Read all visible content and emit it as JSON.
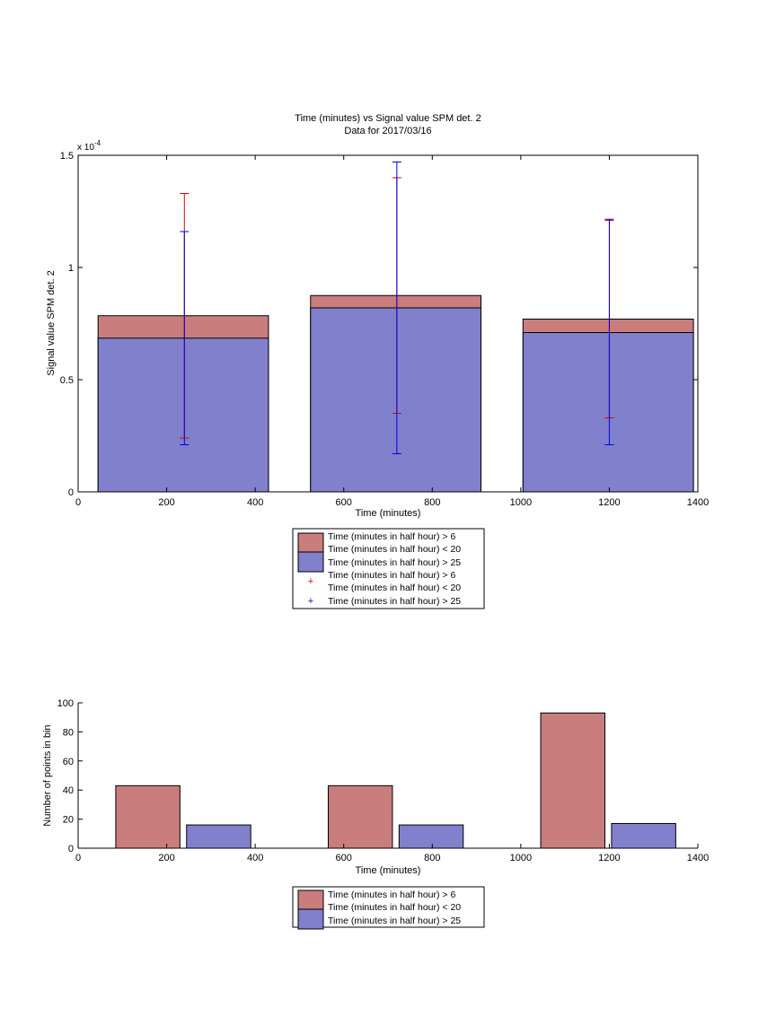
{
  "colors": {
    "red_fill": "#c97d7d",
    "blue_fill": "#8080cc",
    "red_err": "#e00000",
    "blue_err": "#0000e0",
    "axis": "#000000"
  },
  "chart_data": [
    {
      "type": "bar",
      "title": "Time (minutes) vs Signal value SPM det. 2",
      "subtitle": "Data for 2017/03/16",
      "xlabel": "Time (minutes)",
      "ylabel": "Signal value SPM det. 2",
      "y_multiplier": "x 10",
      "y_exponent": "-4",
      "xlim": [
        0,
        1400
      ],
      "ylim": [
        0,
        1.5
      ],
      "x_ticks": [
        0,
        200,
        400,
        600,
        800,
        1000,
        1200,
        1400
      ],
      "y_ticks": [
        0,
        0.5,
        1,
        1.5
      ],
      "bar_ranges": [
        [
          45,
          430
        ],
        [
          525,
          910
        ],
        [
          1005,
          1390
        ]
      ],
      "error_x": [
        240,
        720,
        1200
      ],
      "series": [
        {
          "name": "Time (minutes in half hour) > 6",
          "name_line2": "Time (minutes in half hour) < 20",
          "values": [
            0.785,
            0.875,
            0.77
          ],
          "err_low": [
            0.24,
            0.35,
            0.33
          ],
          "err_high": [
            1.33,
            1.4,
            1.21
          ]
        },
        {
          "name": "Time (minutes in half hour) > 25",
          "values": [
            0.685,
            0.82,
            0.71
          ],
          "err_low": [
            0.21,
            0.17,
            0.21
          ],
          "err_high": [
            1.16,
            1.47,
            1.215
          ]
        }
      ],
      "legend": [
        "Time (minutes in half hour) > 6",
        "Time (minutes in half hour) < 20",
        "Time (minutes in half hour) > 25",
        "Time (minutes in half hour) > 6",
        "Time (minutes in half hour) < 20",
        "Time (minutes in half hour) > 25"
      ],
      "legend_position": "below"
    },
    {
      "type": "bar",
      "xlabel": "Time (minutes)",
      "ylabel": "Number of points in bin",
      "xlim": [
        0,
        1400
      ],
      "ylim": [
        0,
        100
      ],
      "x_ticks": [
        0,
        200,
        400,
        600,
        800,
        1000,
        1200,
        1400
      ],
      "y_ticks": [
        0,
        20,
        40,
        60,
        80,
        100
      ],
      "series": [
        {
          "name": "Time (minutes in half hour) > 6",
          "name_line2": "Time (minutes in half hour) < 20",
          "bar_ranges": [
            [
              85,
              230
            ],
            [
              565,
              710
            ],
            [
              1045,
              1190
            ]
          ],
          "values": [
            43,
            43,
            93
          ]
        },
        {
          "name": "Time (minutes in half hour) > 25",
          "bar_ranges": [
            [
              245,
              390
            ],
            [
              725,
              870
            ],
            [
              1205,
              1350
            ]
          ],
          "values": [
            16,
            16,
            17
          ]
        }
      ],
      "legend": [
        "Time (minutes in half hour) > 6",
        "Time (minutes in half hour) < 20",
        "Time (minutes in half hour) > 25"
      ],
      "legend_position": "below"
    }
  ]
}
